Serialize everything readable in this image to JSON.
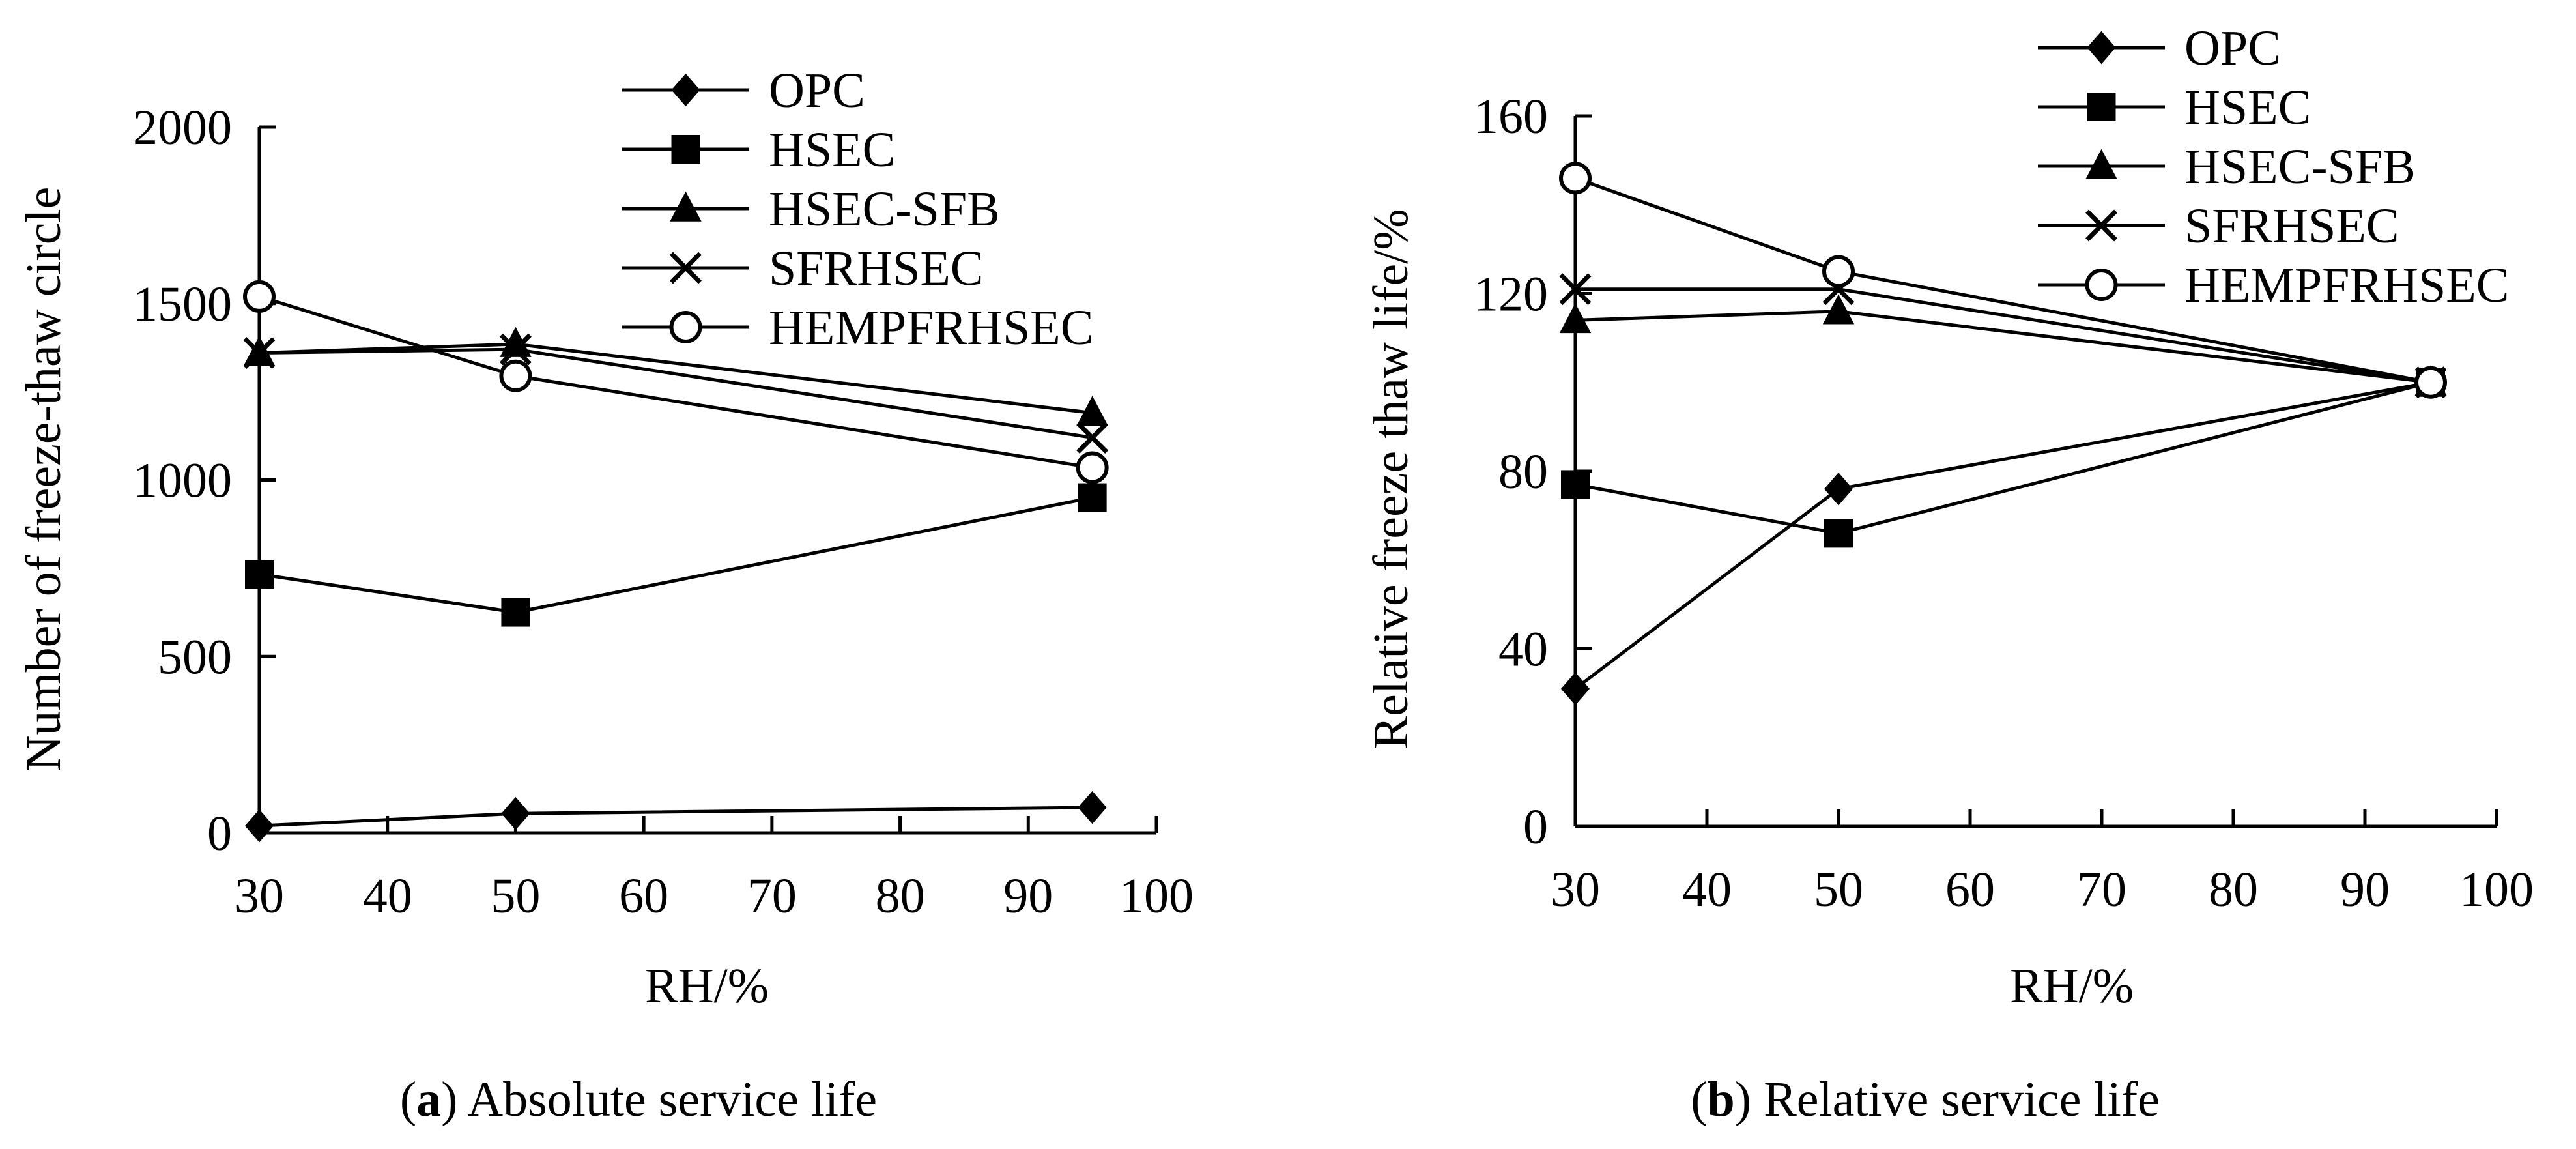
{
  "chart_data": [
    {
      "id": "a",
      "type": "line",
      "caption_letter": "a",
      "caption_text": " Absolute service life",
      "xlabel": "RH/%",
      "ylabel": "Number of freeze-thaw circle",
      "xlim": [
        30,
        100
      ],
      "ylim": [
        0,
        2000
      ],
      "xticks": [
        30,
        40,
        50,
        60,
        70,
        80,
        90,
        100
      ],
      "yticks": [
        0,
        500,
        1000,
        1500,
        2000
      ],
      "x": [
        30,
        50,
        95
      ],
      "series": [
        {
          "name": "OPC",
          "marker": "diamond",
          "values": [
            20,
            55,
            72
          ]
        },
        {
          "name": "HSEC",
          "marker": "square",
          "values": [
            733,
            625,
            950
          ]
        },
        {
          "name": "HSEC-SFB",
          "marker": "triangle",
          "values": [
            1360,
            1385,
            1190
          ]
        },
        {
          "name": "SFRHSEC",
          "marker": "cross",
          "values": [
            1360,
            1370,
            1120
          ]
        },
        {
          "name": "HEMPFRHSEC",
          "marker": "circle",
          "values": [
            1520,
            1295,
            1035
          ]
        }
      ]
    },
    {
      "id": "b",
      "type": "line",
      "caption_letter": "b",
      "caption_text": " Relative service life",
      "xlabel": "RH/%",
      "ylabel": "Relative freeze thaw life/%",
      "xlim": [
        30,
        100
      ],
      "ylim": [
        0,
        160
      ],
      "xticks": [
        30,
        40,
        50,
        60,
        70,
        80,
        90,
        100
      ],
      "yticks": [
        0,
        40,
        80,
        120,
        160
      ],
      "x": [
        30,
        50,
        95
      ],
      "series": [
        {
          "name": "OPC",
          "marker": "diamond",
          "values": [
            31,
            76,
            100
          ]
        },
        {
          "name": "HSEC",
          "marker": "square",
          "values": [
            77,
            66,
            100
          ]
        },
        {
          "name": "HSEC-SFB",
          "marker": "triangle",
          "values": [
            114,
            116,
            100
          ]
        },
        {
          "name": "SFRHSEC",
          "marker": "cross",
          "values": [
            121,
            121,
            100
          ]
        },
        {
          "name": "HEMPFRHSEC",
          "marker": "circle",
          "values": [
            146,
            125,
            100
          ]
        }
      ]
    }
  ]
}
